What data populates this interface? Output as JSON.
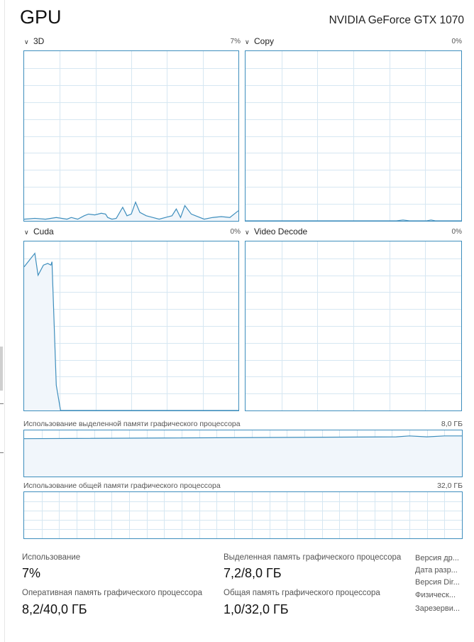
{
  "header": {
    "title": "GPU",
    "device_name": "NVIDIA GeForce GTX 1070"
  },
  "engines": [
    {
      "label": "3D",
      "percent": "7%"
    },
    {
      "label": "Copy",
      "percent": "0%"
    },
    {
      "label": "Cuda",
      "percent": "0%"
    },
    {
      "label": "Video Decode",
      "percent": "0%"
    }
  ],
  "memory_graphs": {
    "dedicated": {
      "label": "Использование выделенной памяти графического процессора",
      "max": "8,0 ГБ"
    },
    "shared": {
      "label": "Использование общей памяти графического процессора",
      "max": "32,0 ГБ"
    }
  },
  "stats": {
    "utilization": {
      "label": "Использование",
      "value": "7%"
    },
    "dedicated_memory": {
      "label": "Выделенная память графического процессора",
      "value": "7,2/8,0 ГБ"
    },
    "gpu_memory": {
      "label": "Оперативная память графического процессора",
      "value": "8,2/40,0 ГБ"
    },
    "shared_memory": {
      "label": "Общая память графического процессора",
      "value": "1,0/32,0 ГБ"
    }
  },
  "details": [
    "Версия др...",
    "Дата разр...",
    "Версия Dir...",
    "Физическ...",
    "Зарезерви..."
  ],
  "colors": {
    "accent": "#3e8ebd",
    "grid": "#d6e7f2",
    "fill": "#f1f6fb"
  }
}
